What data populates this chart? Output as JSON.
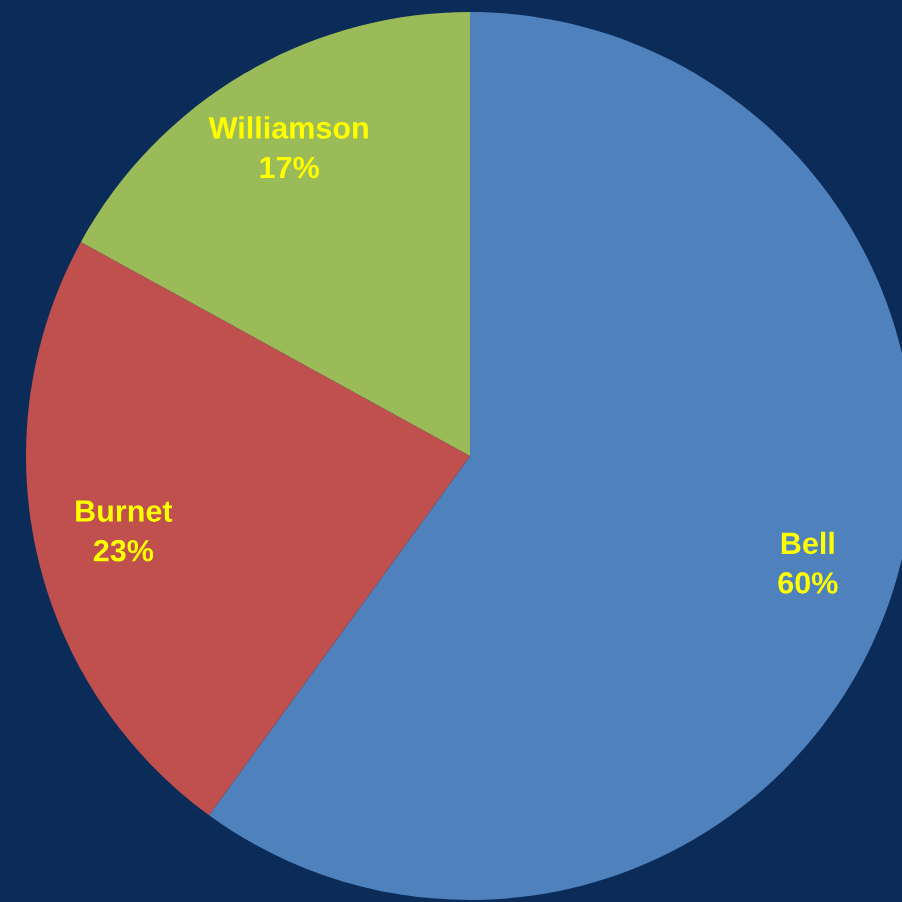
{
  "chart_data": {
    "type": "pie",
    "categories": [
      "Bell",
      "Burnet",
      "Williamson"
    ],
    "values": [
      60,
      23,
      17
    ],
    "value_labels": [
      "60%",
      "23%",
      "17%"
    ],
    "colors": [
      "#4f81bd",
      "#c0504d",
      "#9bbb59"
    ]
  }
}
